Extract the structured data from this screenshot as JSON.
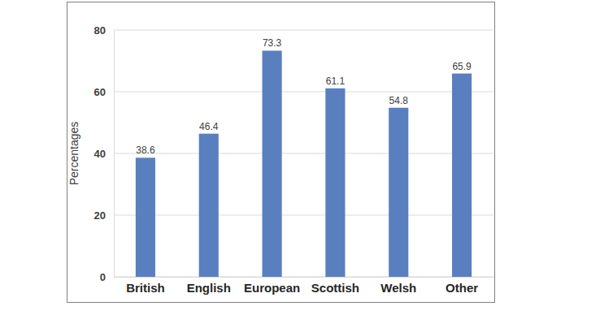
{
  "chart_data": {
    "type": "bar",
    "y_label": "Percentages",
    "categories": [
      "British",
      "English",
      "European",
      "Scottish",
      "Welsh",
      "Other"
    ],
    "values": [
      38.6,
      46.4,
      73.3,
      61.1,
      54.8,
      65.9
    ],
    "color": "#5a7fbe",
    "ylim": [
      0,
      80
    ],
    "yticks": [
      0,
      20,
      40,
      60,
      80
    ],
    "grid": true,
    "data_labels": true
  }
}
